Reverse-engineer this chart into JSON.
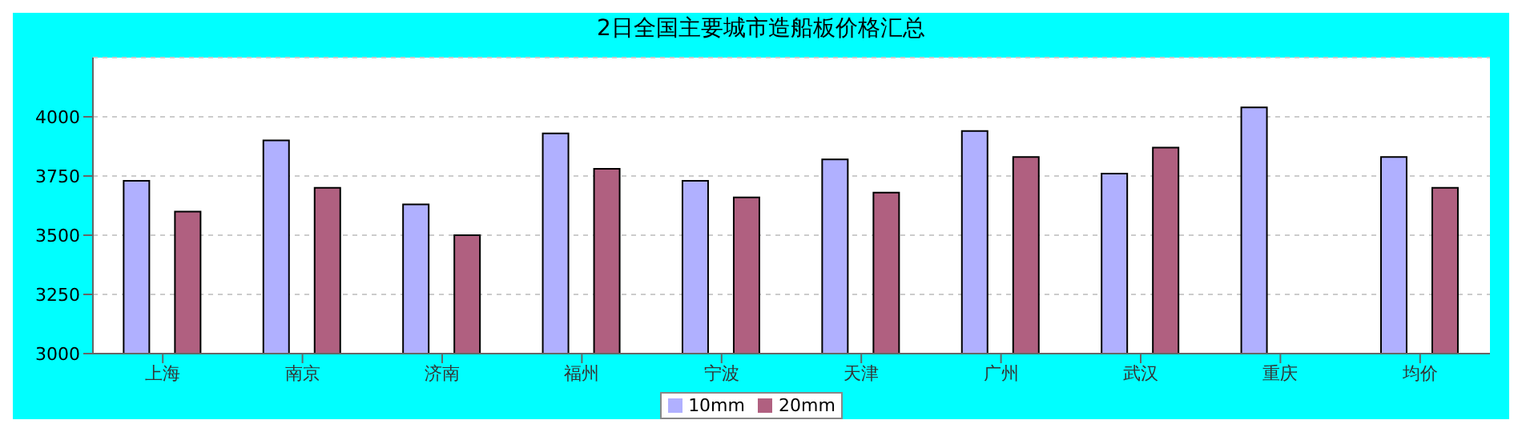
{
  "chart_data": {
    "type": "bar",
    "title": "2日全国主要城市造船板价格汇总",
    "categories": [
      "上海",
      "南京",
      "济南",
      "福州",
      "宁波",
      "天津",
      "广州",
      "武汉",
      "重庆",
      "均价"
    ],
    "series": [
      {
        "name": "10mm",
        "color": "#b0b0ff",
        "values": [
          3730,
          3900,
          3630,
          3930,
          3730,
          3820,
          3940,
          3760,
          4040,
          3830
        ]
      },
      {
        "name": "20mm",
        "color": "#b06080",
        "values": [
          3600,
          3700,
          3500,
          3780,
          3660,
          3680,
          3830,
          3870,
          null,
          3700
        ]
      }
    ],
    "ylim": [
      3000,
      4250
    ],
    "yticks": [
      3000,
      3250,
      3500,
      3750,
      4000
    ],
    "grid": "y",
    "legend": "bottom"
  }
}
